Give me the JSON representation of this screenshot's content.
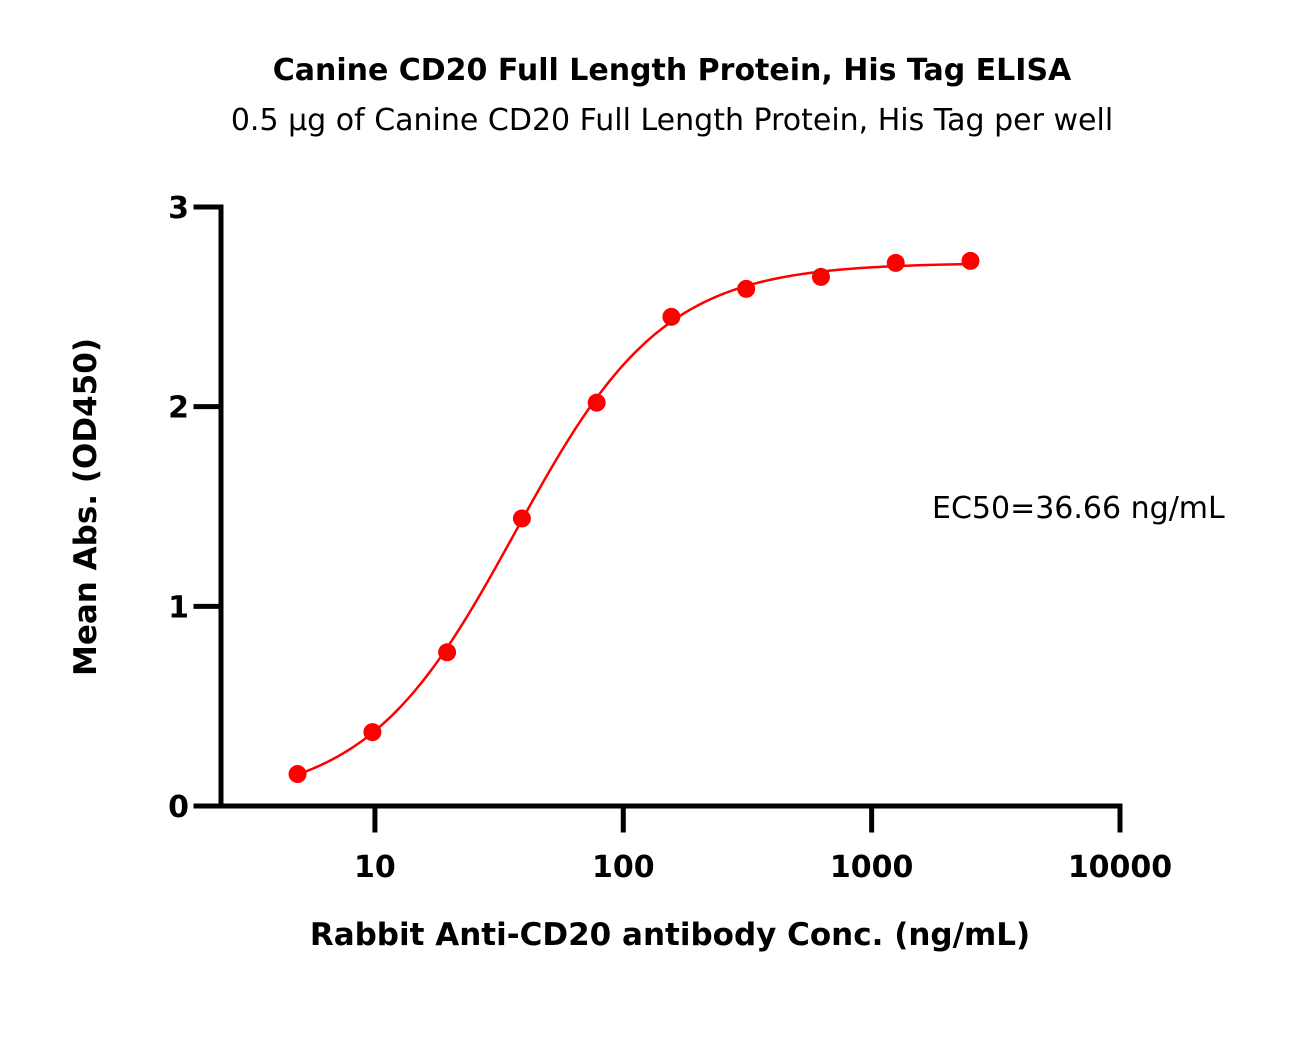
{
  "chart_data": {
    "type": "scatter",
    "title": "Canine CD20 Full Length Protein, His Tag ELISA",
    "subtitle": "0.5 μg of Canine CD20 Full Length Protein, His Tag per well",
    "xlabel": "Rabbit Anti-CD20 antibody Conc. (ng/mL)",
    "ylabel": "Mean Abs. (OD450)",
    "x_scale": "log",
    "xlim": [
      2.4,
      10000
    ],
    "ylim": [
      0,
      3
    ],
    "x_ticks": [
      10,
      100,
      1000,
      10000
    ],
    "x_tick_labels": [
      "10",
      "100",
      "1000",
      "10000"
    ],
    "y_ticks": [
      0,
      1,
      2,
      3
    ],
    "y_tick_labels": [
      "0",
      "1",
      "2",
      "3"
    ],
    "grid": false,
    "annotation": "EC50=36.66 ng/mL",
    "series": [
      {
        "color": "#ff0000",
        "x": [
          4.88,
          9.77,
          19.53,
          39.06,
          78.13,
          156.25,
          312.5,
          625,
          1250,
          2500
        ],
        "y": [
          0.16,
          0.37,
          0.77,
          1.44,
          2.02,
          2.45,
          2.59,
          2.65,
          2.72,
          2.73
        ]
      }
    ],
    "fit": {
      "model": "4PL",
      "bottom": 0.02,
      "top": 2.72,
      "ec50": 36.66,
      "hill": 1.45,
      "color": "#ff0000"
    }
  }
}
